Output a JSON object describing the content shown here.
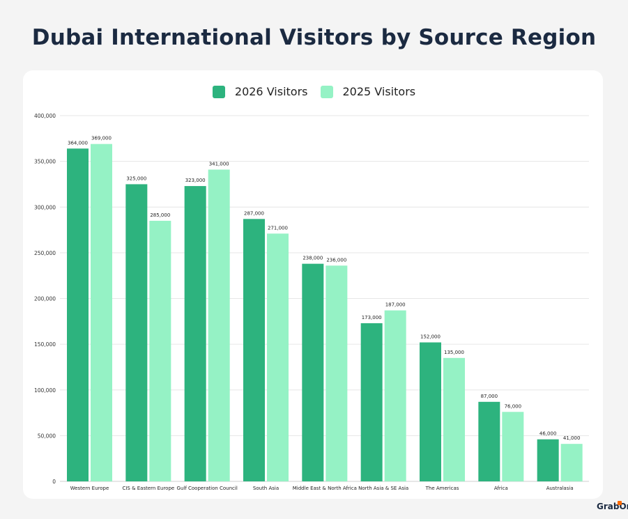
{
  "title": "Dubai International Visitors by Source Region",
  "brand": "GrabOn",
  "colors": {
    "series_2026": "#2db37e",
    "series_2025": "#95f2c5"
  },
  "chart_data": {
    "type": "bar",
    "categories": [
      "Western Europe",
      "CIS & Eastern Europe",
      "Gulf Cooperation Council",
      "South Asia",
      "Middle East & North Africa",
      "North Asia & SE Asia",
      "The Americas",
      "Africa",
      "Australasia"
    ],
    "series": [
      {
        "name": "2026 Visitors",
        "values": [
          364000,
          325000,
          323000,
          287000,
          238000,
          173000,
          152000,
          87000,
          46000
        ]
      },
      {
        "name": "2025 Visitors",
        "values": [
          369000,
          285000,
          341000,
          271000,
          236000,
          187000,
          135000,
          76000,
          41000
        ]
      }
    ],
    "ylim": [
      0,
      400000
    ],
    "yticks": [
      0,
      50000,
      100000,
      150000,
      200000,
      250000,
      300000,
      350000,
      400000
    ],
    "grid": true,
    "legend_position": "top"
  }
}
